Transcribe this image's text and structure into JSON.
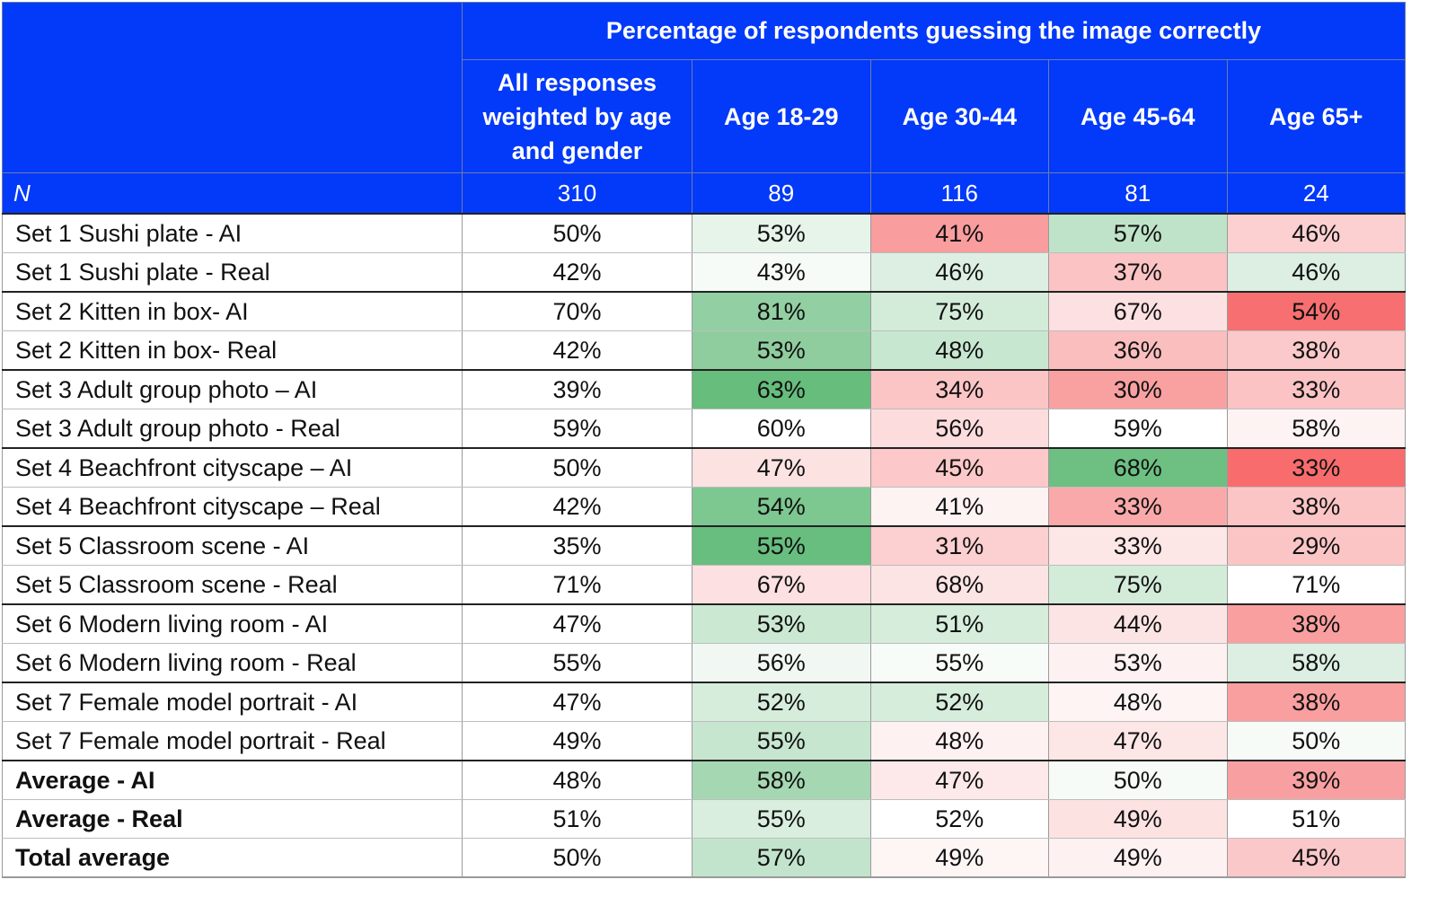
{
  "header": {
    "top_title": "Percentage of respondents guessing the image correctly",
    "columns": [
      "All responses weighted by age and gender",
      "Age 18-29",
      "Age 30-44",
      "Age 45-64",
      "Age 65+"
    ]
  },
  "n_row": {
    "label": "N",
    "values": [
      "310",
      "89",
      "116",
      "81",
      "24"
    ]
  },
  "colors": {
    "header_bg": "#0339f8",
    "header_text": "#ffffff",
    "scale_high": "#5bbf78",
    "scale_mid": "#ffffff",
    "scale_low": "#f8696b"
  },
  "chart_data": {
    "type": "table",
    "title": "Percentage of respondents guessing the image correctly",
    "columns": [
      "All responses weighted by age and gender",
      "Age 18-29",
      "Age 30-44",
      "Age 45-64",
      "Age 65+"
    ],
    "n": [
      310,
      89,
      116,
      81,
      24
    ],
    "rows": [
      {
        "label": "Set 1 Sushi plate - AI",
        "values": [
          "50%",
          "53%",
          "41%",
          "57%",
          "46%"
        ],
        "bold": false,
        "group_start": true
      },
      {
        "label": "Set 1 Sushi plate - Real",
        "values": [
          "42%",
          "43%",
          "46%",
          "37%",
          "46%"
        ],
        "bold": false,
        "group_start": false
      },
      {
        "label": "Set 2 Kitten in box- AI",
        "values": [
          "70%",
          "81%",
          "75%",
          "67%",
          "54%"
        ],
        "bold": false,
        "group_start": true
      },
      {
        "label": "Set 2 Kitten in box- Real",
        "values": [
          "42%",
          "53%",
          "48%",
          "36%",
          "38%"
        ],
        "bold": false,
        "group_start": false
      },
      {
        "label": "Set 3 Adult group photo – AI",
        "values": [
          "39%",
          "63%",
          "34%",
          "30%",
          "33%"
        ],
        "bold": false,
        "group_start": true
      },
      {
        "label": "Set 3 Adult group photo - Real",
        "values": [
          "59%",
          "60%",
          "56%",
          "59%",
          "58%"
        ],
        "bold": false,
        "group_start": false
      },
      {
        "label": "Set 4 Beachfront cityscape – AI",
        "values": [
          "50%",
          "47%",
          "45%",
          "68%",
          "33%"
        ],
        "bold": false,
        "group_start": true
      },
      {
        "label": "Set 4 Beachfront cityscape – Real",
        "values": [
          "42%",
          "54%",
          "41%",
          "33%",
          "38%"
        ],
        "bold": false,
        "group_start": false
      },
      {
        "label": "Set 5 Classroom scene - AI",
        "values": [
          "35%",
          "55%",
          "31%",
          "33%",
          "29%"
        ],
        "bold": false,
        "group_start": true
      },
      {
        "label": "Set 5 Classroom scene - Real",
        "values": [
          "71%",
          "67%",
          "68%",
          "75%",
          "71%"
        ],
        "bold": false,
        "group_start": false
      },
      {
        "label": "Set 6 Modern living room - AI",
        "values": [
          "47%",
          "53%",
          "51%",
          "44%",
          "38%"
        ],
        "bold": false,
        "group_start": true
      },
      {
        "label": "Set 6 Modern living room - Real",
        "values": [
          "55%",
          "56%",
          "55%",
          "53%",
          "58%"
        ],
        "bold": false,
        "group_start": false
      },
      {
        "label": "Set 7 Female model portrait - AI",
        "values": [
          "47%",
          "52%",
          "52%",
          "48%",
          "38%"
        ],
        "bold": false,
        "group_start": true
      },
      {
        "label": "Set 7 Female model portrait - Real",
        "values": [
          "49%",
          "55%",
          "48%",
          "47%",
          "50%"
        ],
        "bold": false,
        "group_start": false
      },
      {
        "label": "Average - AI",
        "values": [
          "48%",
          "58%",
          "47%",
          "50%",
          "39%"
        ],
        "bold": true,
        "group_start": true
      },
      {
        "label": "Average - Real",
        "values": [
          "51%",
          "55%",
          "52%",
          "49%",
          "51%"
        ],
        "bold": true,
        "group_start": false
      },
      {
        "label": "Total average",
        "values": [
          "50%",
          "57%",
          "49%",
          "49%",
          "45%"
        ],
        "bold": true,
        "group_start": false
      }
    ],
    "cell_colors": [
      [
        "#ffffff",
        "#e6f4ea",
        "#f99d9e",
        "#bfe3c9",
        "#fcd0d1"
      ],
      [
        "#ffffff",
        "#f7fbf8",
        "#dcefe2",
        "#fbc3c4",
        "#dcefe2"
      ],
      [
        "#ffffff",
        "#92cfa2",
        "#d3ecda",
        "#fde0e1",
        "#f76f70"
      ],
      [
        "#ffffff",
        "#8fcd9f",
        "#c8e7d1",
        "#fbbebf",
        "#fbc9ca"
      ],
      [
        "#ffffff",
        "#66bd7c",
        "#fbc5c6",
        "#f9a0a1",
        "#fbc3c4"
      ],
      [
        "#ffffff",
        "#ffffff",
        "#fcdcdd",
        "#ffffff",
        "#fef3f3"
      ],
      [
        "#ffffff",
        "#fde2e2",
        "#fcc8c9",
        "#6dbf82",
        "#f86c6d"
      ],
      [
        "#ffffff",
        "#7dc791",
        "#fef3f3",
        "#faa9aa",
        "#fbc5c6"
      ],
      [
        "#ffffff",
        "#68be7e",
        "#fccfd0",
        "#fde6e6",
        "#fbc5c6"
      ],
      [
        "#ffffff",
        "#fde0e1",
        "#fde4e4",
        "#d3ecda",
        "#ffffff"
      ],
      [
        "#ffffff",
        "#cae8d2",
        "#d5edda",
        "#fde4e4",
        "#fa9fa0"
      ],
      [
        "#ffffff",
        "#f1f8f3",
        "#f8fcf9",
        "#fef1f1",
        "#dcefe2"
      ],
      [
        "#ffffff",
        "#d6eddc",
        "#d6eddc",
        "#fef4f4",
        "#fa9fa0"
      ],
      [
        "#ffffff",
        "#c6e6cf",
        "#fef1f1",
        "#fde6e6",
        "#f7fbf8"
      ],
      [
        "#ffffff",
        "#a5d8b2",
        "#fde9e9",
        "#f6fbf7",
        "#f8a0a1"
      ],
      [
        "#ffffff",
        "#d9eedf",
        "#ffffff",
        "#fde2e2",
        "#ffffff"
      ],
      [
        "#ffffff",
        "#c2e4cc",
        "#fef5f5",
        "#fef1f1",
        "#fbc8c9"
      ]
    ]
  }
}
